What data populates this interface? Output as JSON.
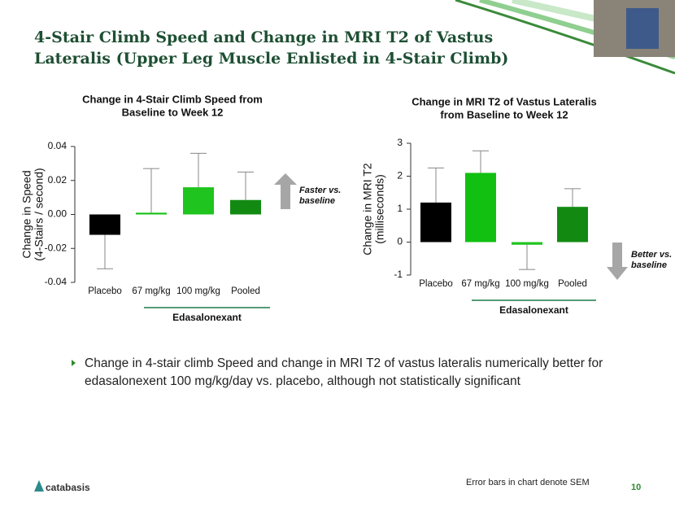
{
  "slide": {
    "title": [
      "4-Stair Climb Speed and Change in MRI T2 of Vastus",
      "Lateralis (Upper Leg Muscle Enlisted in 4-Stair Climb)"
    ],
    "bullet": [
      "Change in 4-stair climb Speed and change in MRI T2 of vastus lateralis numerically better for",
      "edasalonexent 100 mg/kg/day vs. placebo, although not statistically significant"
    ],
    "footnote": "Error bars in chart denote SEM",
    "page_number": "10",
    "logo": "catabasis"
  },
  "chart_data": [
    {
      "type": "bar",
      "title": [
        "Change in 4-Stair Climb Speed from",
        "Baseline to Week 12"
      ],
      "ylabel": [
        "Change in Speed",
        "(4-Stairs / second)"
      ],
      "categories": [
        "Placebo",
        "67 mg/kg",
        "100 mg/kg",
        "Pooled"
      ],
      "values": [
        -0.012,
        0.001,
        0.016,
        0.0085
      ],
      "errors": [
        0.02,
        0.026,
        0.02,
        0.0165
      ],
      "colors": [
        "#000000",
        "#12c012",
        "#1fc41f",
        "#128a12"
      ],
      "ylim": [
        -0.04,
        0.04
      ],
      "yticks": [
        -0.04,
        -0.02,
        {
          "value": 0,
          "label": "0.00"
        },
        0.02,
        0.04
      ],
      "group_label": "Edasalonexant",
      "annotation": [
        "Faster vs.",
        "baseline"
      ]
    },
    {
      "type": "bar",
      "title": [
        "Change in MRI T2 of Vastus Lateralis",
        "from Baseline to Week 12"
      ],
      "ylabel": [
        "Change in MRI T2",
        "(milliseconds)"
      ],
      "categories": [
        "Placebo",
        "67 mg/kg",
        "100 mg/kg",
        "Pooled"
      ],
      "values": [
        1.2,
        2.1,
        -0.08,
        1.07
      ],
      "errors": [
        1.05,
        0.67,
        0.75,
        0.55
      ],
      "colors": [
        "#000000",
        "#12c012",
        "#1fc41f",
        "#128a12"
      ],
      "ylim": [
        -1,
        3
      ],
      "yticks": [
        -1,
        0,
        1,
        2,
        3
      ],
      "group_label": "Edasalonexant",
      "annotation": [
        "Better vs.",
        "baseline"
      ]
    }
  ]
}
